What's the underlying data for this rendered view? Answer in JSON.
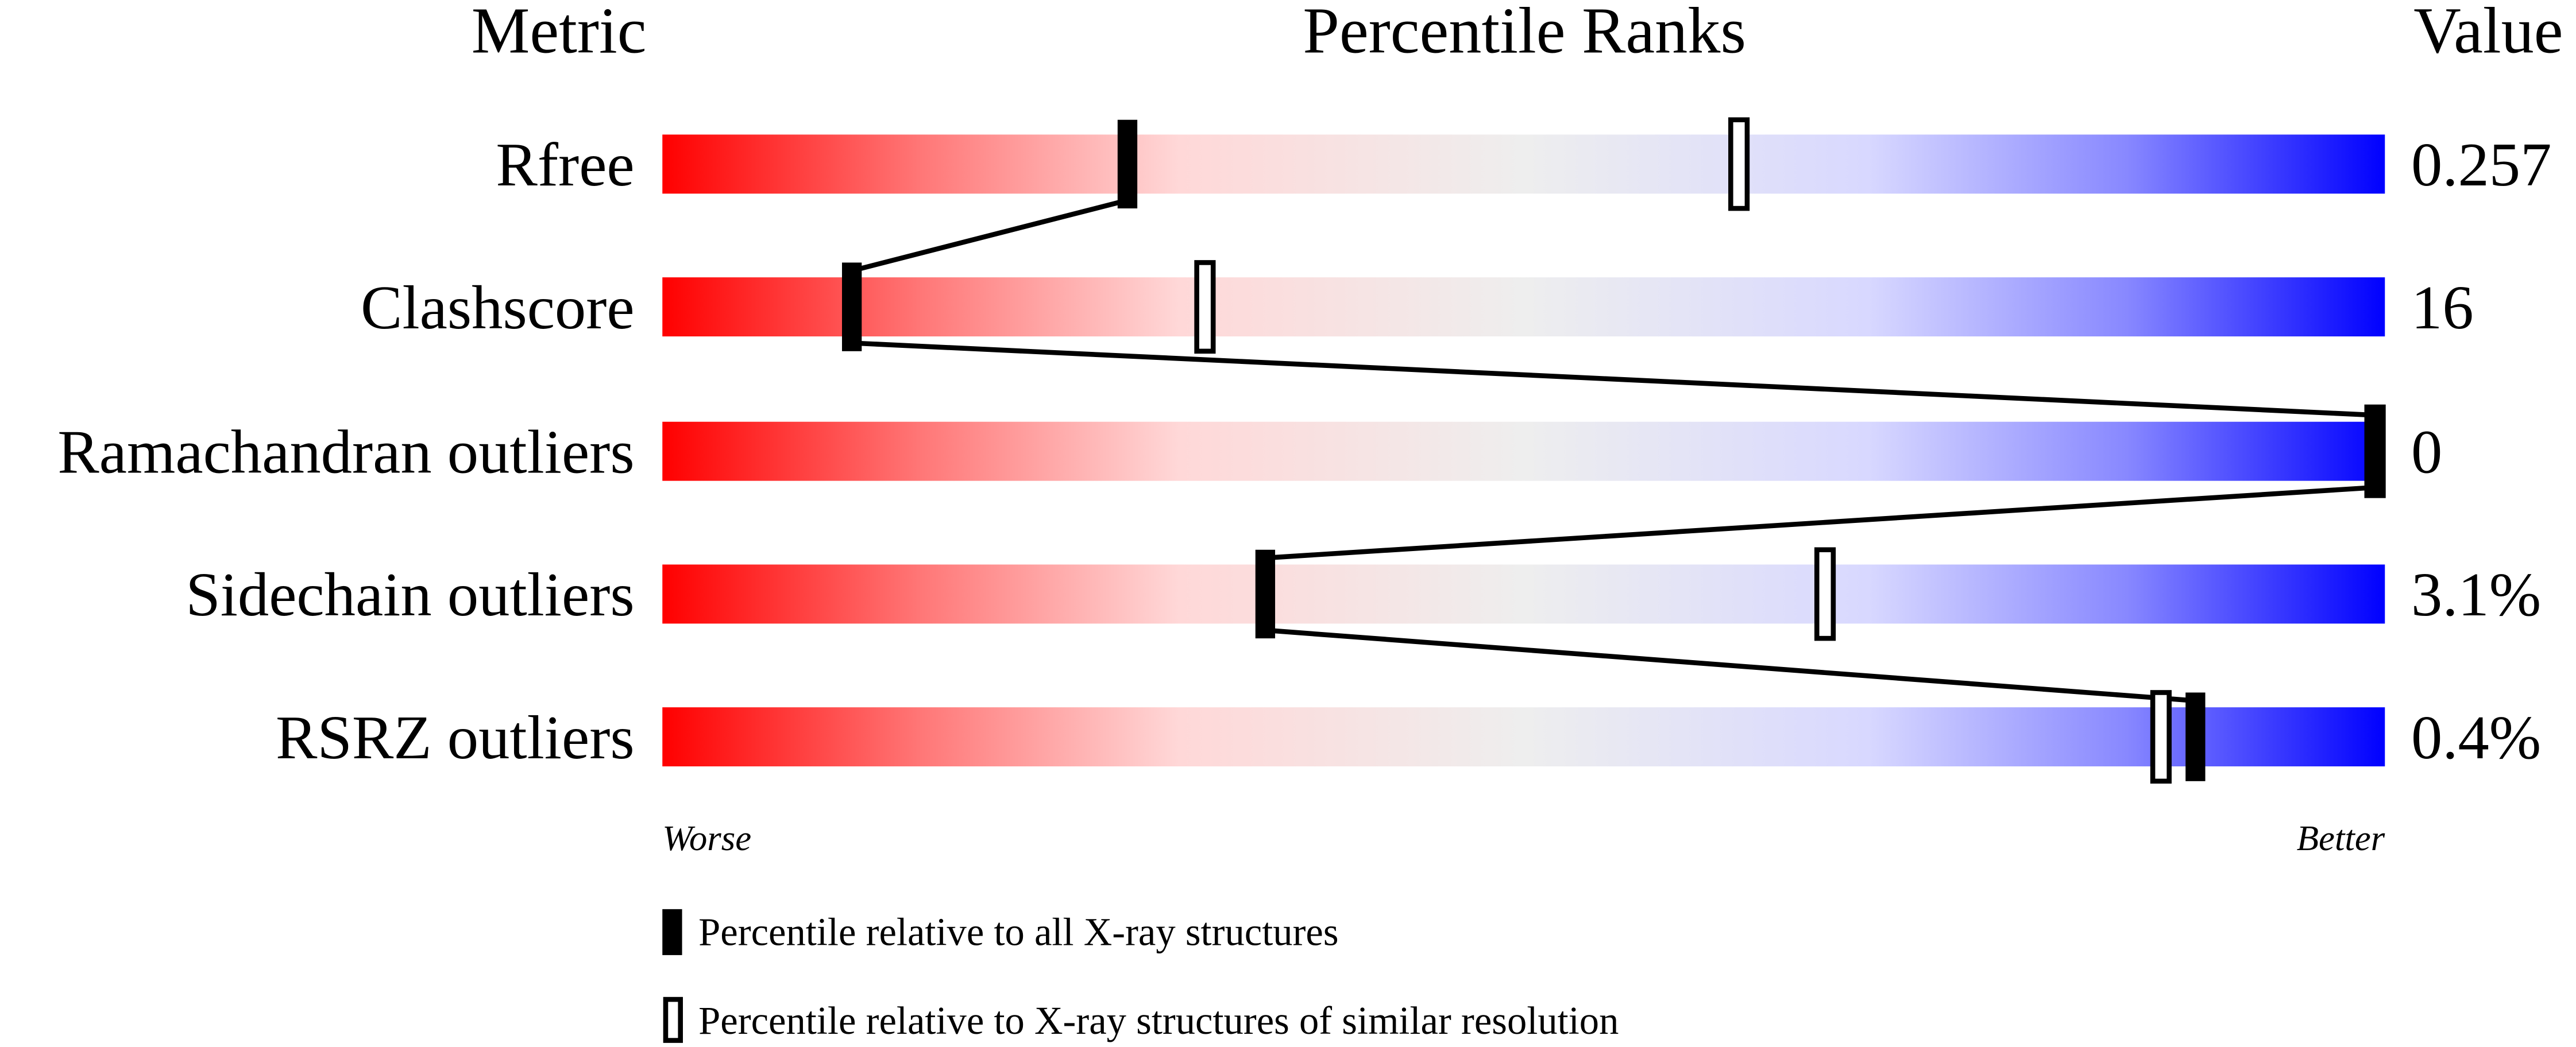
{
  "chart_data": {
    "type": "percentile-bar",
    "headers": {
      "metric": "Metric",
      "ranks": "Percentile Ranks",
      "value": "Value"
    },
    "xlim": [
      0,
      100
    ],
    "metrics": [
      {
        "name": "Rfree",
        "value": "0.257",
        "percentile_all": 27,
        "percentile_similar": 62.5
      },
      {
        "name": "Clashscore",
        "value": "16",
        "percentile_all": 11,
        "percentile_similar": 31.5
      },
      {
        "name": "Ramachandran outliers",
        "value": "0",
        "percentile_all": 100,
        "percentile_similar": 100
      },
      {
        "name": "Sidechain outliers",
        "value": "3.1%",
        "percentile_all": 35,
        "percentile_similar": 67.5
      },
      {
        "name": "RSRZ outliers",
        "value": "0.4%",
        "percentile_all": 89,
        "percentile_similar": 87
      }
    ],
    "axis_labels": {
      "left": "Worse",
      "right": "Better"
    },
    "legend": {
      "filled": "Percentile relative to all X-ray structures",
      "open": "Percentile relative to X-ray structures of similar resolution"
    },
    "colors": {
      "worse": "#ff0000",
      "middle": "#eeeeee",
      "better": "#0000ff",
      "marker": "#000000"
    }
  }
}
